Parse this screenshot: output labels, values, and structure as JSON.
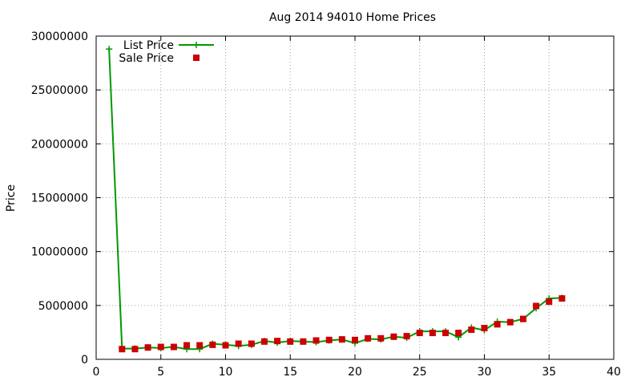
{
  "chart_data": {
    "type": "line",
    "title": "Aug 2014 94010 Home Prices",
    "xlabel": "",
    "ylabel": "Price",
    "xlim": [
      0,
      40
    ],
    "ylim": [
      0,
      30000000
    ],
    "x_ticks": [
      0,
      5,
      10,
      15,
      20,
      25,
      30,
      35,
      40
    ],
    "y_ticks": [
      0,
      5000000,
      10000000,
      15000000,
      20000000,
      25000000,
      30000000
    ],
    "x_tick_labels": [
      "0",
      "5",
      "10",
      "15",
      "20",
      "25",
      "30",
      "35",
      "40"
    ],
    "y_tick_labels": [
      "0",
      "5000000",
      "10000000",
      "15000000",
      "20000000",
      "25000000",
      "30000000"
    ],
    "grid": true,
    "legend_position": "top-left",
    "series": [
      {
        "name": "List Price",
        "style": "line-with-plus-markers",
        "color": "#009900",
        "x": [
          1,
          2,
          3,
          4,
          5,
          6,
          7,
          8,
          9,
          10,
          11,
          12,
          13,
          14,
          15,
          16,
          17,
          18,
          19,
          20,
          21,
          22,
          23,
          24,
          25,
          26,
          27,
          28,
          29,
          30,
          31,
          32,
          33,
          34,
          35,
          36
        ],
        "values": [
          28800000,
          1000000,
          1000000,
          1100000,
          1050000,
          1150000,
          950000,
          950000,
          1450000,
          1350000,
          1250000,
          1350000,
          1700000,
          1550000,
          1700000,
          1650000,
          1600000,
          1750000,
          1850000,
          1500000,
          1900000,
          1850000,
          2100000,
          2000000,
          2600000,
          2600000,
          2600000,
          2050000,
          2950000,
          2700000,
          3500000,
          3450000,
          3750000,
          4750000,
          5650000,
          5700000
        ]
      },
      {
        "name": "Sale Price",
        "style": "square-markers",
        "color": "#cc0000",
        "x": [
          2,
          3,
          4,
          5,
          6,
          7,
          8,
          9,
          10,
          11,
          12,
          13,
          14,
          15,
          16,
          17,
          18,
          19,
          20,
          21,
          22,
          23,
          24,
          25,
          26,
          27,
          28,
          29,
          30,
          31,
          32,
          33,
          34,
          35,
          36
        ],
        "values": [
          950000,
          950000,
          1100000,
          1150000,
          1150000,
          1300000,
          1300000,
          1350000,
          1300000,
          1450000,
          1450000,
          1650000,
          1700000,
          1650000,
          1650000,
          1750000,
          1800000,
          1850000,
          1800000,
          1950000,
          1950000,
          2100000,
          2150000,
          2450000,
          2450000,
          2450000,
          2450000,
          2750000,
          2900000,
          3250000,
          3450000,
          3750000,
          4950000,
          5350000,
          5650000
        ]
      }
    ]
  }
}
